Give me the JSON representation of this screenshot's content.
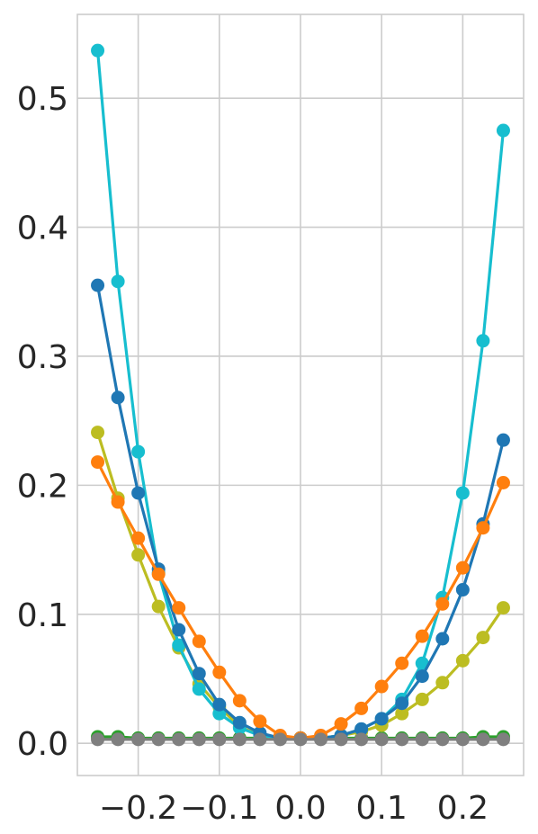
{
  "chart_data": {
    "type": "line",
    "title": "",
    "xlabel": "",
    "ylabel": "",
    "xlim": [
      -0.275,
      0.275
    ],
    "ylim": [
      -0.025,
      0.565
    ],
    "grid": true,
    "x_ticks": [
      {
        "value": -0.2,
        "label": "−0.2"
      },
      {
        "value": -0.1,
        "label": "−0.1"
      },
      {
        "value": 0.0,
        "label": "0.0"
      },
      {
        "value": 0.1,
        "label": "0.1"
      },
      {
        "value": 0.2,
        "label": "0.2"
      }
    ],
    "y_ticks": [
      {
        "value": 0.0,
        "label": "0.0"
      },
      {
        "value": 0.1,
        "label": "0.1"
      },
      {
        "value": 0.2,
        "label": "0.2"
      },
      {
        "value": 0.3,
        "label": "0.3"
      },
      {
        "value": 0.4,
        "label": "0.4"
      },
      {
        "value": 0.5,
        "label": "0.5"
      }
    ],
    "x": [
      -0.25,
      -0.225,
      -0.2,
      -0.175,
      -0.15,
      -0.125,
      -0.1,
      -0.075,
      -0.05,
      -0.025,
      0.0,
      0.025,
      0.05,
      0.075,
      0.1,
      0.125,
      0.15,
      0.175,
      0.2,
      0.225,
      0.25
    ],
    "series": [
      {
        "color": "#2ca02c",
        "values": [
          0.005,
          0.005,
          0.004,
          0.004,
          0.004,
          0.004,
          0.004,
          0.004,
          0.004,
          0.004,
          0.004,
          0.004,
          0.004,
          0.004,
          0.004,
          0.004,
          0.004,
          0.004,
          0.004,
          0.005,
          0.005
        ]
      },
      {
        "color": "#bcbd22",
        "values": [
          0.241,
          0.19,
          0.146,
          0.106,
          0.074,
          0.046,
          0.028,
          0.013,
          0.006,
          0.004,
          0.004,
          0.004,
          0.006,
          0.009,
          0.014,
          0.023,
          0.034,
          0.047,
          0.064,
          0.082,
          0.105
        ]
      },
      {
        "color": "#17becf",
        "values": [
          0.537,
          0.358,
          0.226,
          0.132,
          0.076,
          0.042,
          0.023,
          0.012,
          0.006,
          0.004,
          0.004,
          0.004,
          0.006,
          0.011,
          0.019,
          0.034,
          0.062,
          0.113,
          0.194,
          0.312,
          0.475
        ]
      },
      {
        "color": "#1f77b4",
        "values": [
          0.355,
          0.268,
          0.194,
          0.135,
          0.088,
          0.054,
          0.03,
          0.016,
          0.008,
          0.004,
          0.004,
          0.004,
          0.006,
          0.011,
          0.019,
          0.031,
          0.052,
          0.081,
          0.119,
          0.17,
          0.235
        ]
      },
      {
        "color": "#ff7f0e",
        "values": [
          0.218,
          0.187,
          0.159,
          0.131,
          0.105,
          0.079,
          0.055,
          0.033,
          0.017,
          0.006,
          0.004,
          0.006,
          0.015,
          0.027,
          0.044,
          0.062,
          0.083,
          0.108,
          0.136,
          0.167,
          0.202
        ]
      },
      {
        "color": "#7f7f7f",
        "values": [
          0.003,
          0.003,
          0.003,
          0.003,
          0.003,
          0.003,
          0.003,
          0.003,
          0.003,
          0.003,
          0.003,
          0.003,
          0.003,
          0.003,
          0.003,
          0.003,
          0.003,
          0.003,
          0.003,
          0.003,
          0.003
        ]
      }
    ]
  }
}
